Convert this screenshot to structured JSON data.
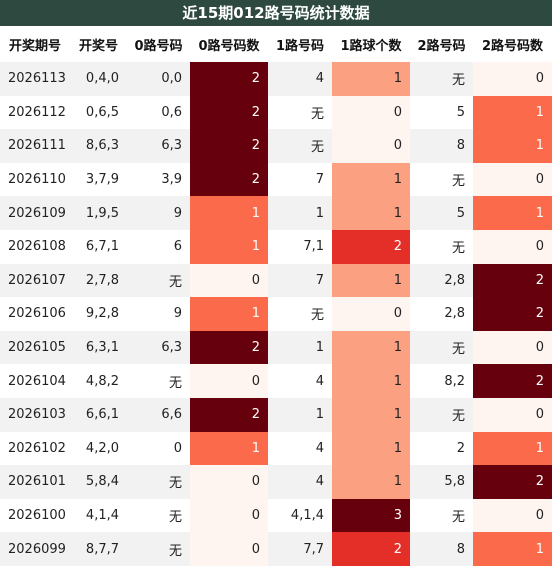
{
  "header": {
    "title": "近15期012路号码统计数据"
  },
  "table": {
    "columns": [
      "开奖期号",
      "开奖号",
      "0路号码",
      "0路号码数",
      "1路号码",
      "1路球个数",
      "2路号码",
      "2路号码数"
    ],
    "rows": [
      [
        "2026113",
        "0,4,0",
        "0,0",
        2,
        "4",
        1,
        "无",
        0
      ],
      [
        "2026112",
        "0,6,5",
        "0,6",
        2,
        "无",
        0,
        "5",
        1
      ],
      [
        "2026111",
        "8,6,3",
        "6,3",
        2,
        "无",
        0,
        "8",
        1
      ],
      [
        "2026110",
        "3,7,9",
        "3,9",
        2,
        "7",
        1,
        "无",
        0
      ],
      [
        "2026109",
        "1,9,5",
        "9",
        1,
        "1",
        1,
        "5",
        1
      ],
      [
        "2026108",
        "6,7,1",
        "6",
        1,
        "7,1",
        2,
        "无",
        0
      ],
      [
        "2026107",
        "2,7,8",
        "无",
        0,
        "7",
        1,
        "2,8",
        2
      ],
      [
        "2026106",
        "9,2,8",
        "9",
        1,
        "无",
        0,
        "2,8",
        2
      ],
      [
        "2026105",
        "6,3,1",
        "6,3",
        2,
        "1",
        1,
        "无",
        0
      ],
      [
        "2026104",
        "4,8,2",
        "无",
        0,
        "4",
        1,
        "8,2",
        2
      ],
      [
        "2026103",
        "6,6,1",
        "6,6",
        2,
        "1",
        1,
        "无",
        0
      ],
      [
        "2026102",
        "4,2,0",
        "0",
        1,
        "4",
        1,
        "2",
        1
      ],
      [
        "2026101",
        "5,8,4",
        "无",
        0,
        "4",
        1,
        "5,8",
        2
      ],
      [
        "2026100",
        "4,1,4",
        "无",
        0,
        "4,1,4",
        3,
        "无",
        0
      ],
      [
        "2026099",
        "8,7,7",
        "无",
        0,
        "7,7",
        2,
        "8",
        1
      ]
    ]
  }
}
